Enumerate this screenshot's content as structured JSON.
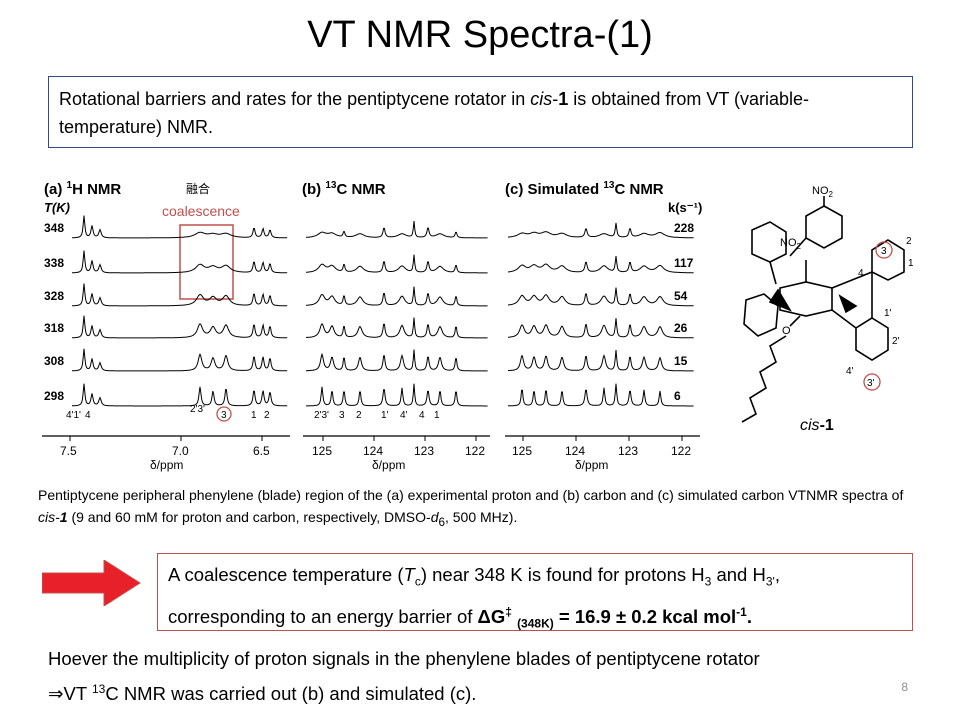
{
  "slide": {
    "title": "VT NMR Spectra-(1)",
    "intro": {
      "part1": "Rotational barriers and rates for the pentiptycene rotator in ",
      "cis": "cis",
      "dash": "-",
      "num": "1",
      "part2": " is obtained from VT (variable-temperature) NMR."
    },
    "page_number": "8"
  },
  "figure": {
    "panel_a": {
      "label": "(a) ",
      "sup": "1",
      "title": "H NMR",
      "unit": "T(K)",
      "xlabel": "δ/ppm",
      "ticks": [
        "7.5",
        "7.0",
        "6.5"
      ],
      "peak_labels": [
        "4'1'",
        "4",
        "2'3'",
        "3",
        "1",
        "2"
      ]
    },
    "panel_b": {
      "label": "(b) ",
      "sup": "13",
      "title": "C NMR",
      "xlabel": "δ/ppm",
      "ticks": [
        "125",
        "124",
        "123",
        "122"
      ],
      "peak_labels": [
        "2'3'",
        "3",
        "2",
        "1'",
        "4'",
        "4",
        "1"
      ]
    },
    "panel_c": {
      "label": "(c) Simulated ",
      "sup": "13",
      "title": "C NMR",
      "unit": "k(s⁻¹)",
      "xlabel": "δ/ppm",
      "ticks": [
        "125",
        "124",
        "123",
        "122"
      ]
    },
    "temperatures": [
      "348",
      "338",
      "328",
      "318",
      "308",
      "298"
    ],
    "rates": [
      "228",
      "117",
      "54",
      "26",
      "15",
      "6"
    ],
    "coalescence_kanji": "融合",
    "coalescence_label": "coalescence",
    "molecule": {
      "nitro": "NO",
      "nitro_sub": "2",
      "numbers": [
        "3",
        "2",
        "1",
        "4",
        "1'",
        "2'",
        "4'",
        "3'"
      ],
      "name_italic": "cis",
      "name_bold": "-1"
    },
    "colors": {
      "box_blue": "#2f4f7f",
      "accent_red": "#c0504d",
      "arrow_red": "#e8202a"
    }
  },
  "caption": {
    "t1": "Pentiptycene peripheral phenylene (blade) region of the (a) experimental proton and (b) carbon and (c) simulated carbon VTNMR spectra of ",
    "cis": "cis-",
    "num": "1",
    "t2": " (9 and 60 mM for proton and carbon, respectively, DMSO-",
    "d": "d",
    "dsub": "6",
    "t3": ", 500 MHz)."
  },
  "conclusion": {
    "t1": "A coalescence temperature (",
    "T": "T",
    "Tsub": "c",
    "t2": ") near 348 K is found for protons H",
    "h3": "3",
    "t3": " and H",
    "h3p": "3'",
    "t4": ",",
    "t5": "corresponding to an energy barrier of ",
    "dG": "ΔG",
    "dagger": "‡",
    "dGsub": "(348K)",
    "t6": " = 16.9 ± 0.2 kcal mol",
    "neg": "-1",
    "t7": "."
  },
  "bottom_text": {
    "line1": "Hoever the multiplicity of proton signals in the phenylene blades of pentiptycene rotator",
    "arrow": "⇒VT ",
    "sup": "13",
    "line2": "C NMR was carried out (b) and simulated (c)."
  }
}
